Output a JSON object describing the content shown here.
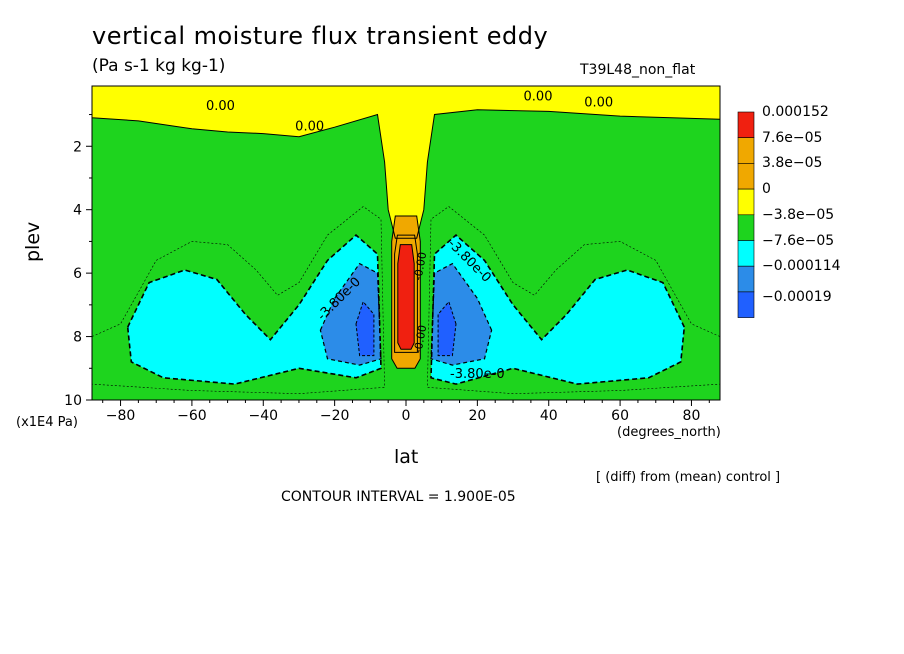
{
  "figure": {
    "title": "vertical moisture flux transient eddy",
    "units": "(Pa s-1 kg kg-1)",
    "run_label": "T39L48_non_flat",
    "y_scale_note": "(x1E4 Pa)",
    "x_units": "(degrees_north)",
    "diff_note": "[ (diff) from (mean) control ]",
    "contour_interval": "CONTOUR INTERVAL = 1.900E-05"
  },
  "colors": {
    "c_m4": "#2060ff",
    "c_m3": "#2c8ce8",
    "c_m2": "#00ffff",
    "c_m1": "#1ed41e",
    "c_0": "#ffff00",
    "c_1": "#f0a800",
    "c_2": "#f02010"
  },
  "chart_data": {
    "type": "heatmap",
    "xlabel": "lat",
    "ylabel": "plev",
    "xlim": [
      -88,
      88
    ],
    "ylim": [
      10,
      0.1
    ],
    "x_ticks": [
      -80,
      -60,
      -40,
      -20,
      0,
      20,
      40,
      60,
      80
    ],
    "y_ticks": [
      2,
      4,
      6,
      8,
      10
    ],
    "colorbar": {
      "levels": [
        "0.000152",
        "7.6e-05",
        "3.8e-05",
        "0",
        "-3.8e-05",
        "-7.6e-05",
        "-0.000114",
        "-0.00019"
      ],
      "colors": [
        "#f02010",
        "#f0a800",
        "#f0a800",
        "#ffff00",
        "#1ed41e",
        "#00ffff",
        "#2c8ce8",
        "#2060ff"
      ]
    },
    "contour_labels": [
      {
        "text": "0.00",
        "lat": -52,
        "plev": 0.85
      },
      {
        "text": "0.00",
        "lat": -27,
        "plev": 1.5
      },
      {
        "text": "0.00",
        "lat": 37,
        "plev": 0.55
      },
      {
        "text": "0.00",
        "lat": 54,
        "plev": 0.75
      },
      {
        "text": "-3.80e-0",
        "lat": -18,
        "plev": 6.9
      },
      {
        "text": "-3.80e-0",
        "lat": 17,
        "plev": 5.7
      },
      {
        "text": "-3.80e-0",
        "lat": 20,
        "plev": 9.3
      },
      {
        "text": "-0.00",
        "lat": 5,
        "plev": 5.8
      },
      {
        "text": "-0.00",
        "lat": 5,
        "plev": 8.1
      }
    ]
  }
}
